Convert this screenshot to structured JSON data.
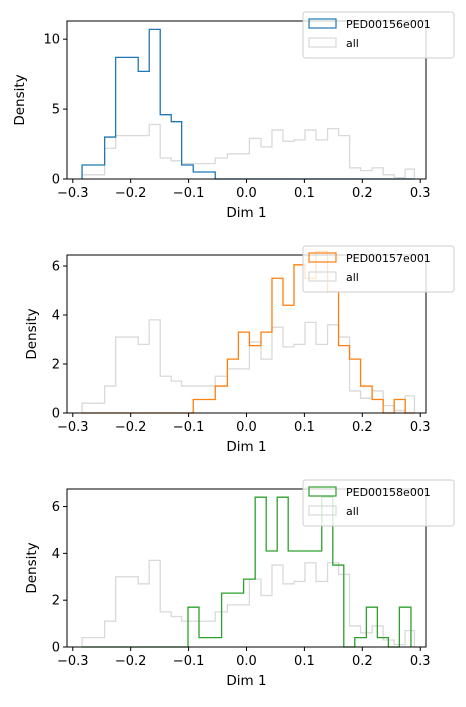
{
  "chart_data": [
    {
      "type": "histogram",
      "xlabel": "Dim 1",
      "ylabel": "Density",
      "xlim": [
        -0.31,
        0.31
      ],
      "ylim": [
        0,
        11.3
      ],
      "xticks": [
        -0.3,
        -0.2,
        -0.1,
        0.0,
        0.1,
        0.2,
        0.3
      ],
      "xtick_labels": [
        "−0.3",
        "−0.2",
        "−0.1",
        "0.0",
        "0.1",
        "0.2",
        "0.3"
      ],
      "yticks": [
        0,
        5,
        10
      ],
      "ytick_labels": [
        "0",
        "5",
        "10"
      ],
      "legend_position": "top-right",
      "series": [
        {
          "name": "PED00156e001",
          "color": "#1f77b4",
          "bin_edges": [
            -0.284,
            -0.245,
            -0.226,
            -0.206,
            -0.187,
            -0.168,
            -0.149,
            -0.13,
            -0.112,
            -0.092,
            -0.054,
            -0.033,
            0.29
          ],
          "values": [
            1.0,
            3.0,
            8.7,
            8.7,
            7.7,
            10.7,
            4.6,
            4.1,
            1.0,
            0.5,
            0.0,
            0.0
          ]
        },
        {
          "name": "all",
          "color": "#d9d9d9",
          "bin_edges": [
            -0.284,
            -0.245,
            -0.226,
            -0.206,
            -0.187,
            -0.168,
            -0.149,
            -0.13,
            -0.112,
            -0.092,
            -0.054,
            -0.033,
            -0.014,
            0.005,
            0.025,
            0.044,
            0.063,
            0.082,
            0.101,
            0.12,
            0.14,
            0.159,
            0.178,
            0.197,
            0.217,
            0.236,
            0.255,
            0.274,
            0.29
          ],
          "values": [
            0.3,
            2.2,
            3.1,
            3.1,
            3.1,
            3.9,
            1.5,
            1.3,
            1.1,
            1.1,
            1.5,
            1.8,
            1.8,
            2.9,
            2.3,
            3.5,
            2.7,
            2.8,
            3.5,
            2.8,
            3.6,
            3.1,
            0.8,
            0.6,
            0.8,
            0.3,
            0.1,
            0.7
          ]
        }
      ]
    },
    {
      "type": "histogram",
      "xlabel": "Dim 1",
      "ylabel": "Density",
      "xlim": [
        -0.31,
        0.31
      ],
      "ylim": [
        0,
        6.45
      ],
      "xticks": [
        -0.3,
        -0.2,
        -0.1,
        0.0,
        0.1,
        0.2,
        0.3
      ],
      "xtick_labels": [
        "−0.3",
        "−0.2",
        "−0.1",
        "0.0",
        "0.1",
        "0.2",
        "0.3"
      ],
      "yticks": [
        0,
        2,
        4,
        6
      ],
      "ytick_labels": [
        "0",
        "2",
        "4",
        "6"
      ],
      "legend_position": "top-right",
      "series": [
        {
          "name": "PED00157e001",
          "color": "#ff7f0e",
          "bin_edges": [
            -0.284,
            -0.092,
            -0.054,
            -0.033,
            -0.014,
            0.005,
            0.025,
            0.044,
            0.063,
            0.082,
            0.101,
            0.12,
            0.14,
            0.159,
            0.178,
            0.197,
            0.217,
            0.236,
            0.255,
            0.274,
            0.29
          ],
          "values": [
            0.0,
            0.55,
            1.1,
            2.2,
            3.3,
            2.75,
            3.3,
            5.5,
            4.4,
            6.05,
            5.5,
            6.6,
            4.95,
            2.75,
            2.2,
            1.1,
            0.55,
            0.0,
            0.55,
            0.0
          ]
        },
        {
          "name": "all",
          "color": "#d9d9d9",
          "bin_edges": [
            -0.284,
            -0.245,
            -0.226,
            -0.206,
            -0.187,
            -0.168,
            -0.149,
            -0.13,
            -0.112,
            -0.092,
            -0.054,
            -0.033,
            -0.014,
            0.005,
            0.025,
            0.044,
            0.063,
            0.082,
            0.101,
            0.12,
            0.14,
            0.159,
            0.178,
            0.197,
            0.217,
            0.236,
            0.255,
            0.274,
            0.29
          ],
          "values": [
            0.4,
            1.1,
            3.1,
            3.1,
            2.8,
            3.8,
            1.5,
            1.3,
            1.1,
            1.1,
            1.5,
            1.8,
            1.8,
            2.9,
            2.2,
            3.5,
            2.7,
            2.8,
            3.7,
            2.8,
            3.6,
            3.1,
            0.9,
            0.6,
            0.9,
            0.3,
            0.1,
            0.7
          ]
        }
      ]
    },
    {
      "type": "histogram",
      "xlabel": "Dim 1",
      "ylabel": "Density",
      "xlim": [
        -0.31,
        0.31
      ],
      "ylim": [
        0,
        6.75
      ],
      "xticks": [
        -0.3,
        -0.2,
        -0.1,
        0.0,
        0.1,
        0.2,
        0.3
      ],
      "xtick_labels": [
        "−0.3",
        "−0.2",
        "−0.1",
        "0.0",
        "0.1",
        "0.2",
        "0.3"
      ],
      "yticks": [
        0,
        2,
        4,
        6
      ],
      "ytick_labels": [
        "0",
        "2",
        "4",
        "6"
      ],
      "legend_position": "top-right",
      "series": [
        {
          "name": "PED00158e001",
          "color": "#2ca02c",
          "bin_edges": [
            -0.284,
            -0.101,
            -0.082,
            -0.043,
            -0.005,
            0.015,
            0.034,
            0.053,
            0.072,
            0.091,
            0.13,
            0.149,
            0.168,
            0.187,
            0.207,
            0.226,
            0.245,
            0.264,
            0.284
          ],
          "values": [
            0.0,
            1.7,
            0.4,
            2.3,
            2.9,
            6.4,
            4.1,
            6.4,
            4.1,
            4.1,
            6.4,
            3.5,
            0.0,
            0.4,
            1.7,
            0.4,
            0.0,
            1.7
          ]
        },
        {
          "name": "all",
          "color": "#d9d9d9",
          "bin_edges": [
            -0.284,
            -0.245,
            -0.226,
            -0.206,
            -0.187,
            -0.168,
            -0.149,
            -0.13,
            -0.112,
            -0.092,
            -0.054,
            -0.033,
            -0.014,
            0.005,
            0.025,
            0.044,
            0.063,
            0.082,
            0.101,
            0.12,
            0.14,
            0.159,
            0.178,
            0.197,
            0.217,
            0.236,
            0.255,
            0.274,
            0.29
          ],
          "values": [
            0.4,
            1.1,
            3.0,
            3.0,
            2.7,
            3.7,
            1.5,
            1.3,
            1.1,
            1.1,
            1.5,
            1.8,
            1.8,
            2.9,
            2.2,
            3.5,
            2.7,
            2.8,
            3.6,
            2.8,
            3.6,
            3.1,
            0.9,
            0.6,
            0.9,
            0.3,
            0.1,
            0.7
          ]
        }
      ]
    }
  ]
}
